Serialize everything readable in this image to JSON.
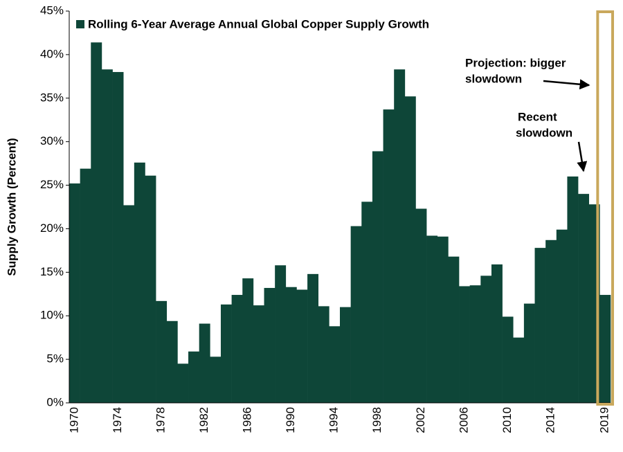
{
  "chart_data": {
    "type": "bar",
    "legend": "Rolling 6-Year Average Annual Global Copper Supply Growth",
    "y_label": "Supply Growth (Percent)",
    "annotations": [
      [
        "Projection: bigger",
        "slowdown"
      ],
      [
        "Recent",
        "slowdown"
      ]
    ],
    "categories": [
      "1970",
      null,
      null,
      null,
      "1974",
      null,
      null,
      null,
      "1978",
      null,
      null,
      null,
      "1982",
      null,
      null,
      null,
      "1986",
      null,
      null,
      null,
      "1990",
      null,
      null,
      null,
      "1994",
      null,
      null,
      null,
      "1998",
      null,
      null,
      null,
      "2002",
      null,
      null,
      null,
      "2006",
      null,
      null,
      null,
      "2010",
      null,
      null,
      null,
      "2014",
      null,
      null,
      null,
      null,
      "2019"
    ],
    "values": [
      25.2,
      26.9,
      41.4,
      38.3,
      38.0,
      22.7,
      27.6,
      26.1,
      11.7,
      9.4,
      4.5,
      5.9,
      9.1,
      5.3,
      11.3,
      12.4,
      14.3,
      11.2,
      13.2,
      15.8,
      13.3,
      13.0,
      14.8,
      11.1,
      8.8,
      11.0,
      20.3,
      23.1,
      28.9,
      33.7,
      38.3,
      35.2,
      22.3,
      19.2,
      19.1,
      16.8,
      13.4,
      13.5,
      14.6,
      15.9,
      9.9,
      7.5,
      11.4,
      17.8,
      18.7,
      19.9,
      26.0,
      24.0,
      22.8,
      12.4
    ],
    "color": "#0e4638",
    "ylim": [
      0,
      45
    ],
    "yticks": [
      {
        "value": 0,
        "label": "0%"
      },
      {
        "value": 5,
        "label": "5%"
      },
      {
        "value": 10,
        "label": "10%"
      },
      {
        "value": 15,
        "label": "15%"
      },
      {
        "value": 20,
        "label": "20%"
      },
      {
        "value": 25,
        "label": "25%"
      },
      {
        "value": 30,
        "label": "30%"
      },
      {
        "value": 35,
        "label": "35%"
      },
      {
        "value": 40,
        "label": "40%"
      },
      {
        "value": 45,
        "label": "45%"
      }
    ],
    "grid": false
  }
}
